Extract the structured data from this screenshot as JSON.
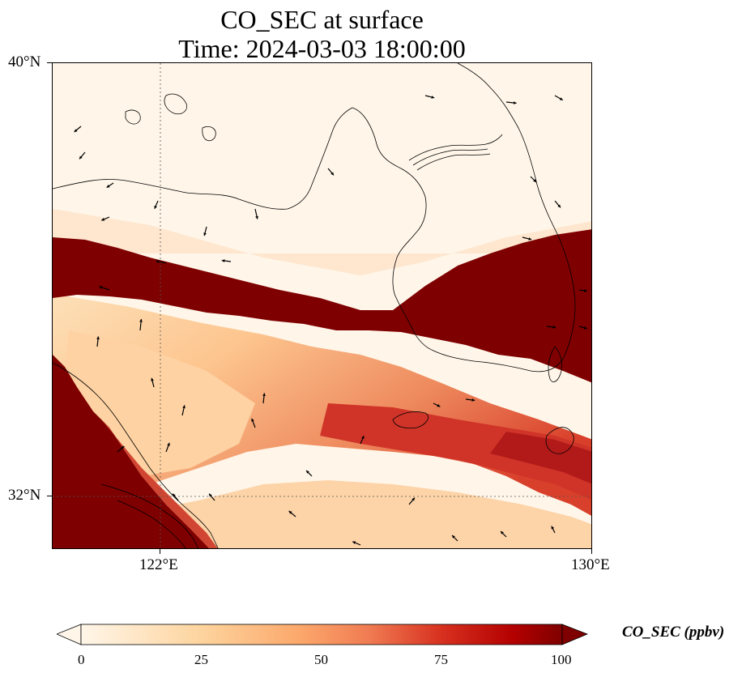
{
  "title_line1": "CO_SEC at surface",
  "title_line2": "Time: 2024-03-03 18:00:00",
  "map": {
    "lat_labels": [
      "40°N",
      "32°N"
    ],
    "lon_labels": [
      "122°E",
      "130°E"
    ],
    "colors": {
      "low": "#fff6e9",
      "mid": "#fdb87a",
      "high": "#7f0000",
      "coast": "#000000"
    }
  },
  "colorbar": {
    "title": "CO_SEC (ppbv)",
    "ticks": [
      "0",
      "25",
      "50",
      "75",
      "100"
    ],
    "range": [
      0,
      100
    ]
  }
}
